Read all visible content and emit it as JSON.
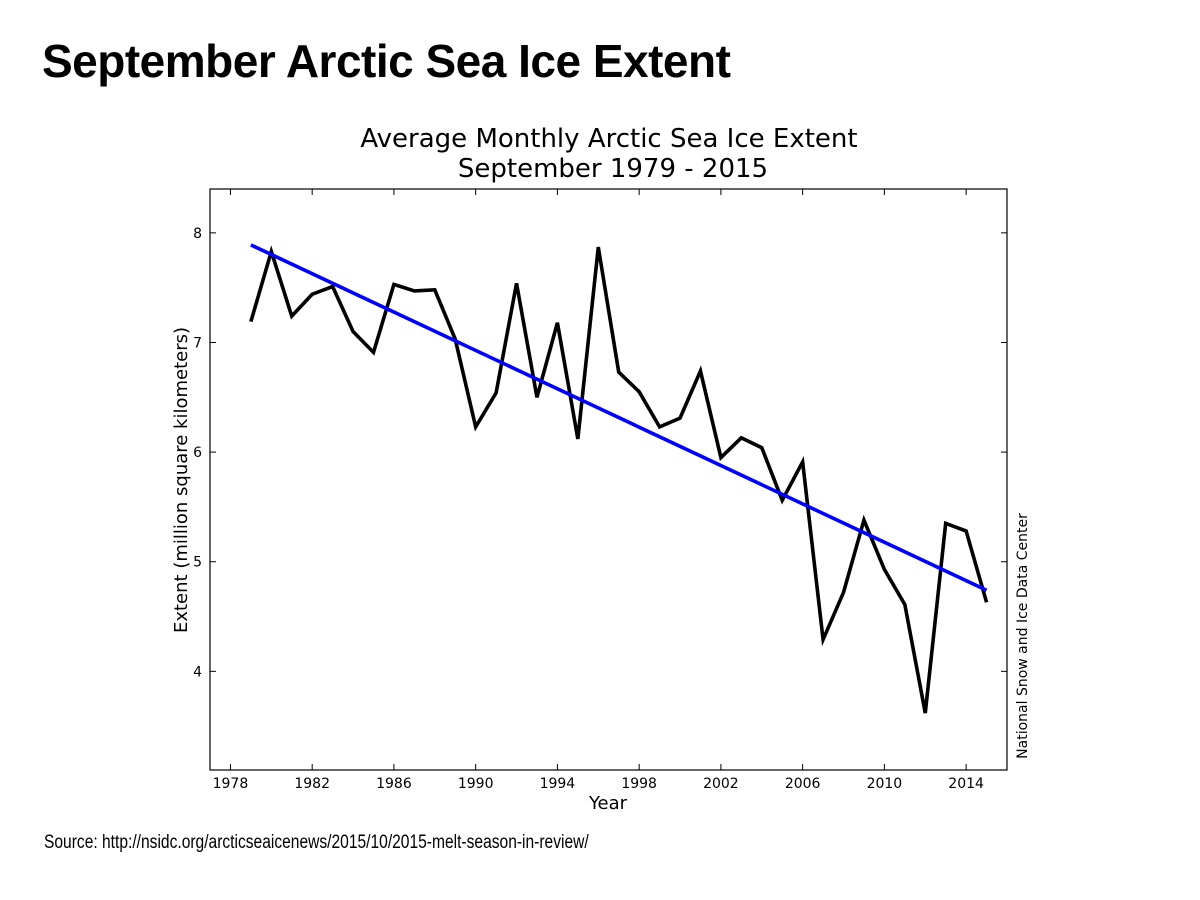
{
  "slide": {
    "title": "September Arctic Sea Ice Extent",
    "source": "Source: http://nsidc.org/arcticseaicenews/2015/10/2015-melt-season-in-review/"
  },
  "chart_data": {
    "type": "line",
    "title": "Average Monthly Arctic Sea Ice Extent",
    "subtitle": "September 1979 - 2015",
    "xlabel": "Year",
    "ylabel": "Extent (million square kilometers)",
    "credit": "National Snow and Ice Data Center",
    "xlim": [
      1977,
      2016
    ],
    "ylim": [
      3.1,
      8.4
    ],
    "xticks": [
      1978,
      1982,
      1986,
      1990,
      1994,
      1998,
      2002,
      2006,
      2010,
      2014
    ],
    "yticks": [
      4,
      5,
      6,
      7,
      8
    ],
    "grid": false,
    "colors": {
      "data_line": "#000000",
      "trend_line": "#0000ff"
    },
    "x": [
      1979,
      1980,
      1981,
      1982,
      1983,
      1984,
      1985,
      1986,
      1987,
      1988,
      1989,
      1990,
      1991,
      1992,
      1993,
      1994,
      1995,
      1996,
      1997,
      1998,
      1999,
      2000,
      2001,
      2002,
      2003,
      2004,
      2005,
      2006,
      2007,
      2008,
      2009,
      2010,
      2011,
      2012,
      2013,
      2014,
      2015
    ],
    "series": [
      {
        "values": [
          7.19,
          7.83,
          7.24,
          7.44,
          7.51,
          7.1,
          6.91,
          7.53,
          7.47,
          7.48,
          7.03,
          6.23,
          6.54,
          7.54,
          6.5,
          7.18,
          6.12,
          7.87,
          6.73,
          6.55,
          6.23,
          6.31,
          6.74,
          5.95,
          6.13,
          6.04,
          5.56,
          5.91,
          4.29,
          4.72,
          5.38,
          4.93,
          4.61,
          3.62,
          5.35,
          5.28,
          4.63
        ]
      },
      {
        "values": [
          7.89,
          4.74
        ],
        "x": [
          1979,
          2015
        ]
      }
    ]
  }
}
